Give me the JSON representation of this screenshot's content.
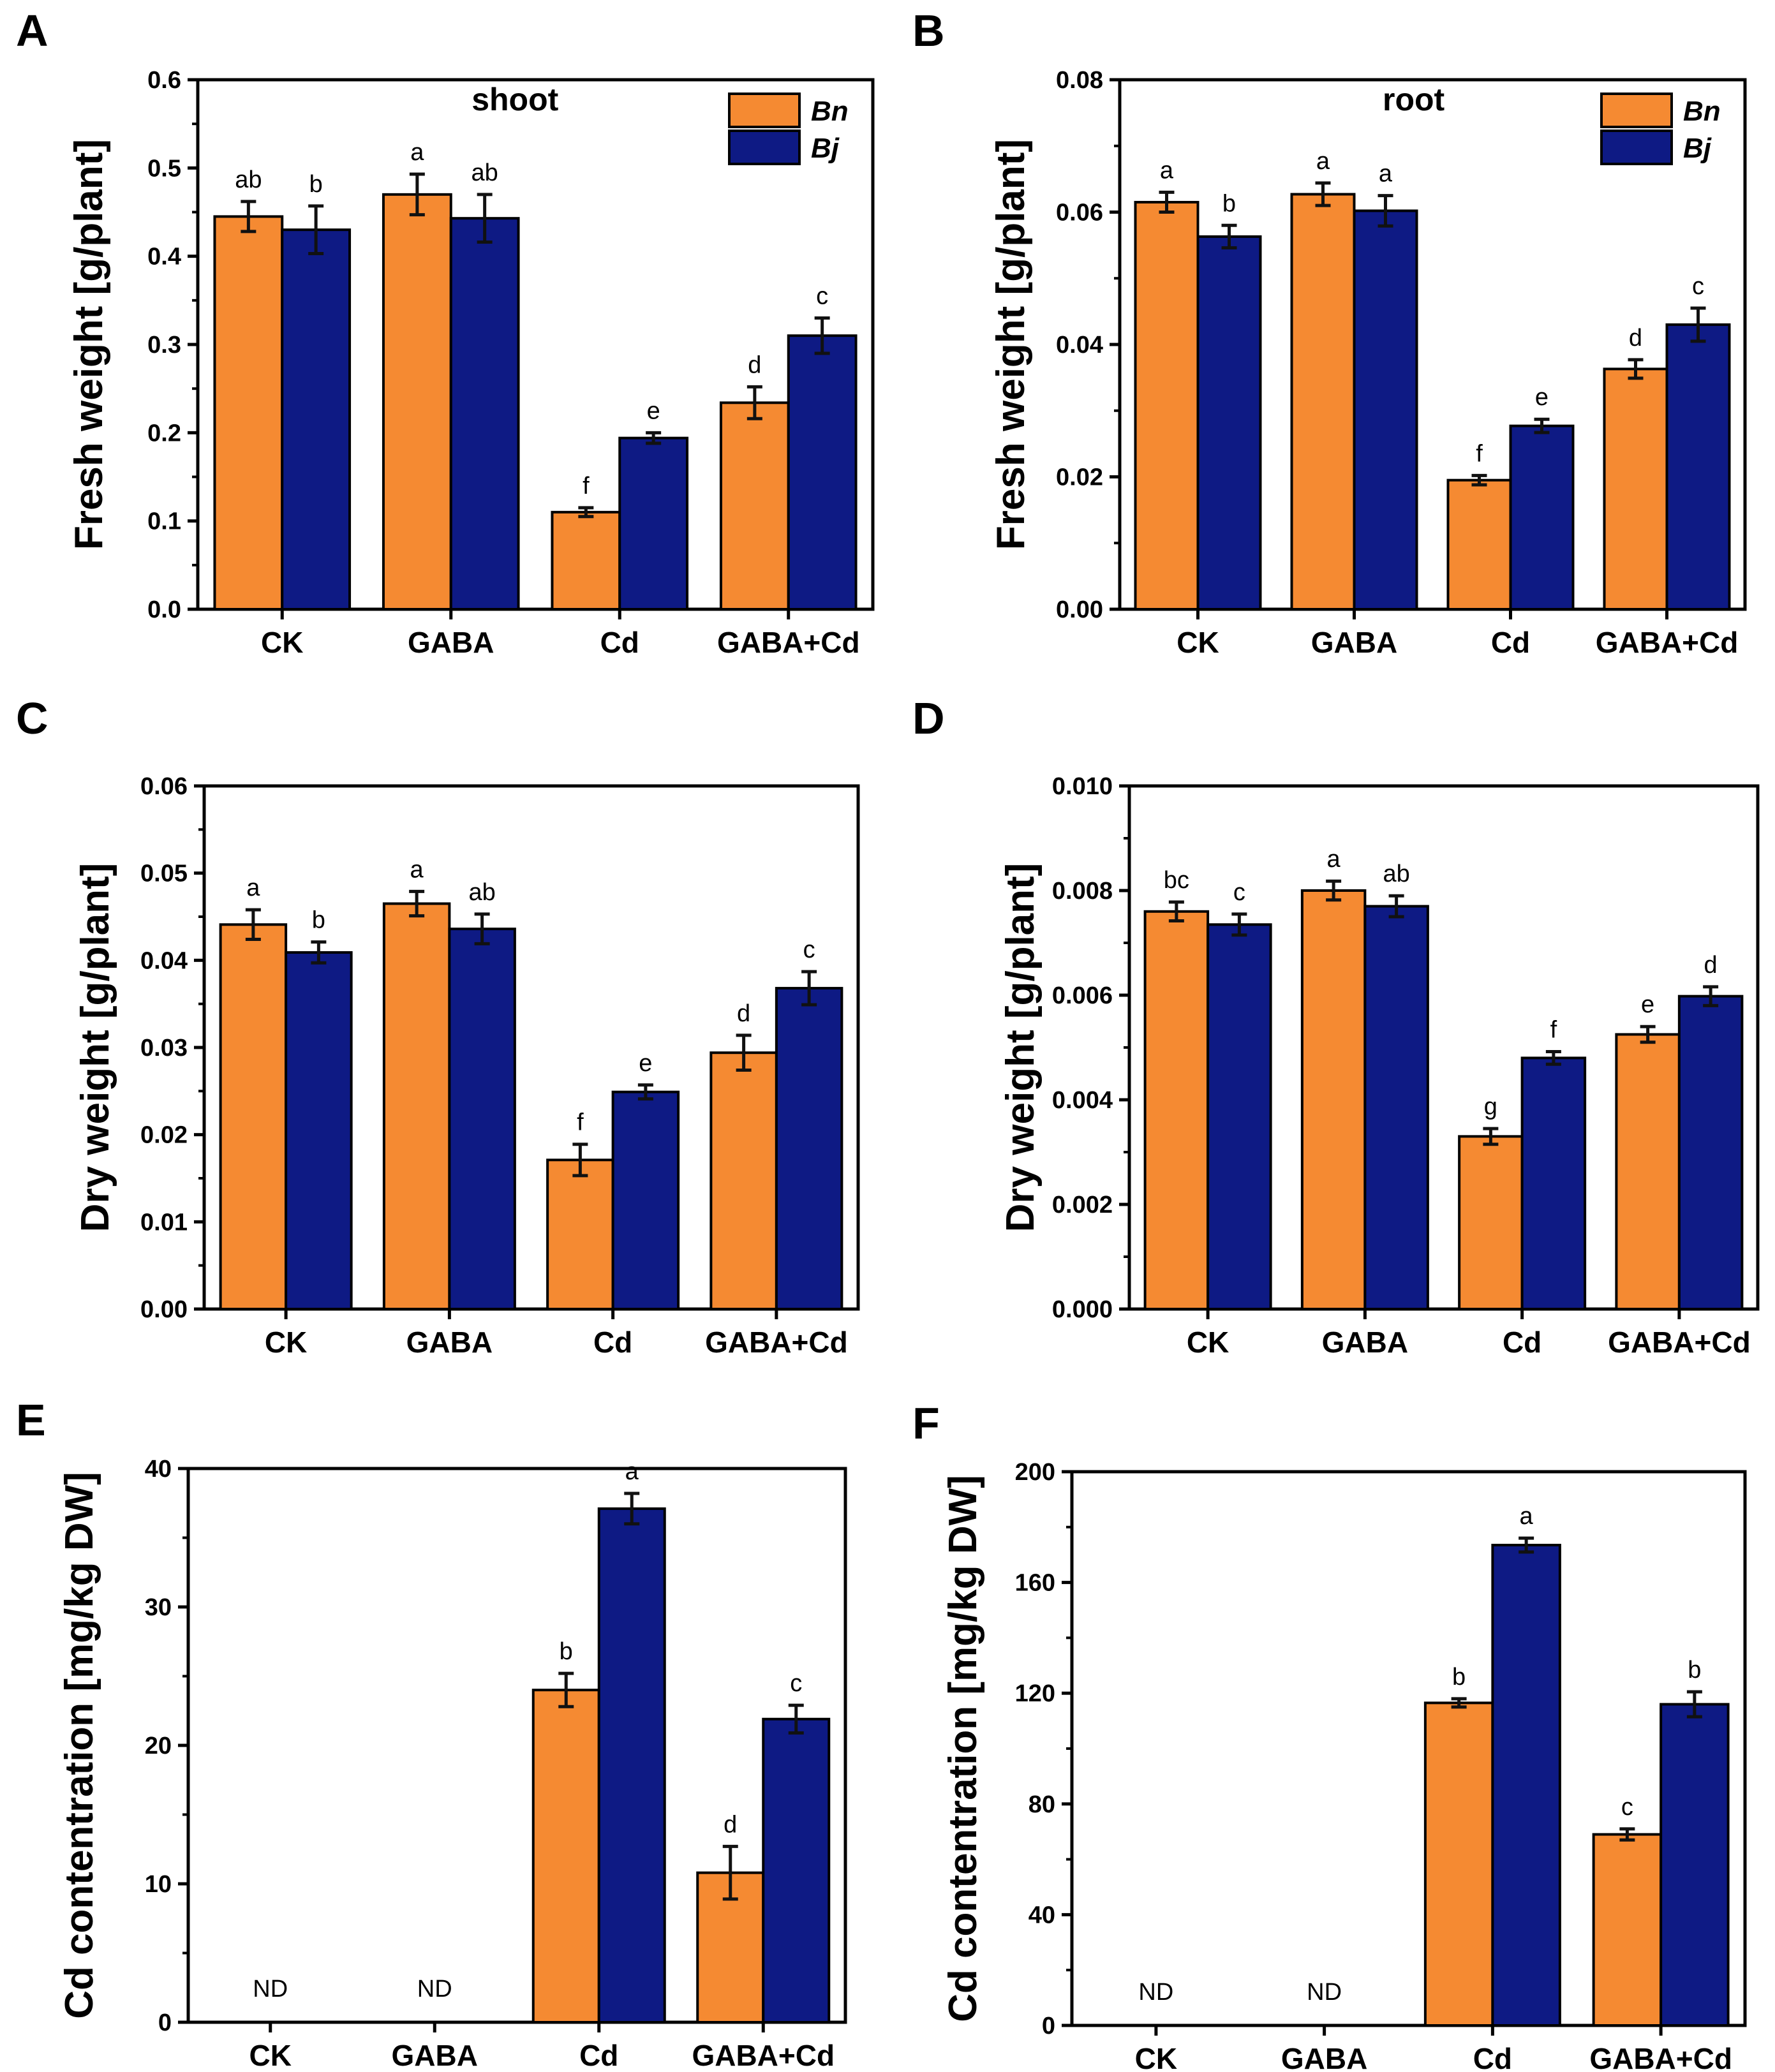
{
  "colors": {
    "Bn": "#F58A32",
    "Bj": "#0E1A84",
    "axis": "#000000",
    "errorbar": "#111111"
  },
  "legend": {
    "title_shown_in_panel": "A/B",
    "entries": [
      "Bn",
      "Bj"
    ]
  },
  "chart_data": [
    {
      "panel": "A",
      "type": "bar",
      "title": "shoot",
      "ylabel": "Fresh weight [g/plant]",
      "xlabel": "",
      "categories": [
        "CK",
        "GABA",
        "Cd",
        "GABA+Cd"
      ],
      "ylim": [
        0,
        0.6
      ],
      "yticks": [
        "0.0",
        "0.1",
        "0.2",
        "0.3",
        "0.4",
        "0.5",
        "0.6"
      ],
      "legend": [
        "Bn",
        "Bj"
      ],
      "series": [
        {
          "name": "Bn",
          "values": [
            0.445,
            0.47,
            0.11,
            0.234
          ],
          "errors": [
            0.017,
            0.023,
            0.005,
            0.018
          ],
          "letters": [
            "ab",
            "a",
            "f",
            "d"
          ]
        },
        {
          "name": "Bj",
          "values": [
            0.43,
            0.443,
            0.194,
            0.31
          ],
          "errors": [
            0.027,
            0.027,
            0.006,
            0.02
          ],
          "letters": [
            "b",
            "ab",
            "e",
            "c"
          ]
        }
      ]
    },
    {
      "panel": "B",
      "type": "bar",
      "title": "root",
      "ylabel": "Fresh weight [g/plant]",
      "xlabel": "",
      "categories": [
        "CK",
        "GABA",
        "Cd",
        "GABA+Cd"
      ],
      "ylim": [
        0,
        0.08
      ],
      "yticks": [
        "0.00",
        "0.02",
        "0.04",
        "0.06",
        "0.08"
      ],
      "legend": [
        "Bn",
        "Bj"
      ],
      "series": [
        {
          "name": "Bn",
          "values": [
            0.0615,
            0.0627,
            0.0195,
            0.0363
          ],
          "errors": [
            0.0015,
            0.0017,
            0.0007,
            0.0014
          ],
          "letters": [
            "a",
            "a",
            "f",
            "d"
          ]
        },
        {
          "name": "Bj",
          "values": [
            0.0563,
            0.0602,
            0.0277,
            0.043
          ],
          "errors": [
            0.0017,
            0.0023,
            0.001,
            0.0025
          ],
          "letters": [
            "b",
            "a",
            "e",
            "c"
          ]
        }
      ]
    },
    {
      "panel": "C",
      "type": "bar",
      "title": "",
      "ylabel": "Dry weight [g/plant]",
      "xlabel": "",
      "categories": [
        "CK",
        "GABA",
        "Cd",
        "GABA+Cd"
      ],
      "ylim": [
        0,
        0.06
      ],
      "yticks": [
        "0.00",
        "0.01",
        "0.02",
        "0.03",
        "0.04",
        "0.05",
        "0.06"
      ],
      "legend": [],
      "series": [
        {
          "name": "Bn",
          "values": [
            0.0441,
            0.0465,
            0.0171,
            0.0294
          ],
          "errors": [
            0.0017,
            0.0014,
            0.0018,
            0.002
          ],
          "letters": [
            "a",
            "a",
            "f",
            "d"
          ]
        },
        {
          "name": "Bj",
          "values": [
            0.0409,
            0.0436,
            0.0249,
            0.0368
          ],
          "errors": [
            0.0012,
            0.0017,
            0.0008,
            0.0019
          ],
          "letters": [
            "b",
            "ab",
            "e",
            "c"
          ]
        }
      ]
    },
    {
      "panel": "D",
      "type": "bar",
      "title": "",
      "ylabel": "Dry weight [g/plant]",
      "xlabel": "",
      "categories": [
        "CK",
        "GABA",
        "Cd",
        "GABA+Cd"
      ],
      "ylim": [
        0,
        0.01
      ],
      "yticks": [
        "0.000",
        "0.002",
        "0.004",
        "0.006",
        "0.008",
        "0.010"
      ],
      "legend": [],
      "series": [
        {
          "name": "Bn",
          "values": [
            0.0076,
            0.008,
            0.0033,
            0.00525
          ],
          "errors": [
            0.00018,
            0.00018,
            0.00015,
            0.00015
          ],
          "letters": [
            "bc",
            "a",
            "g",
            "e"
          ]
        },
        {
          "name": "Bj",
          "values": [
            0.00735,
            0.0077,
            0.0048,
            0.00598
          ],
          "errors": [
            0.0002,
            0.0002,
            0.00012,
            0.00018
          ],
          "letters": [
            "c",
            "ab",
            "f",
            "d"
          ]
        }
      ]
    },
    {
      "panel": "E",
      "type": "bar",
      "title": "",
      "ylabel": "Cd contentration [mg/kg DW]",
      "xlabel": "",
      "categories": [
        "CK",
        "GABA",
        "Cd",
        "GABA+Cd"
      ],
      "ylim": [
        0,
        40
      ],
      "yticks": [
        "0",
        "10",
        "20",
        "30",
        "40"
      ],
      "legend": [],
      "not_detected_label": "ND",
      "series": [
        {
          "name": "Bn",
          "values": [
            null,
            null,
            24.0,
            10.8
          ],
          "errors": [
            null,
            null,
            1.2,
            1.9
          ],
          "letters": [
            "ND",
            "ND",
            "b",
            "d"
          ]
        },
        {
          "name": "Bj",
          "values": [
            null,
            null,
            37.1,
            21.9
          ],
          "errors": [
            null,
            null,
            1.1,
            1.0
          ],
          "letters": [
            "",
            "",
            "a",
            "c"
          ]
        }
      ]
    },
    {
      "panel": "F",
      "type": "bar",
      "title": "",
      "ylabel": "Cd contentration [mg/kg DW]",
      "xlabel": "",
      "categories": [
        "CK",
        "GABA",
        "Cd",
        "GABA+Cd"
      ],
      "ylim": [
        0,
        200
      ],
      "yticks": [
        "0",
        "40",
        "80",
        "120",
        "160",
        "200"
      ],
      "legend": [],
      "not_detected_label": "ND",
      "series": [
        {
          "name": "Bn",
          "values": [
            null,
            null,
            116.5,
            69.0
          ],
          "errors": [
            null,
            null,
            1.5,
            2.0
          ],
          "letters": [
            "ND",
            "ND",
            "b",
            "c"
          ]
        },
        {
          "name": "Bj",
          "values": [
            null,
            null,
            173.5,
            116.0
          ],
          "errors": [
            null,
            null,
            2.5,
            4.5
          ],
          "letters": [
            "",
            "",
            "a",
            "b"
          ]
        }
      ]
    }
  ]
}
